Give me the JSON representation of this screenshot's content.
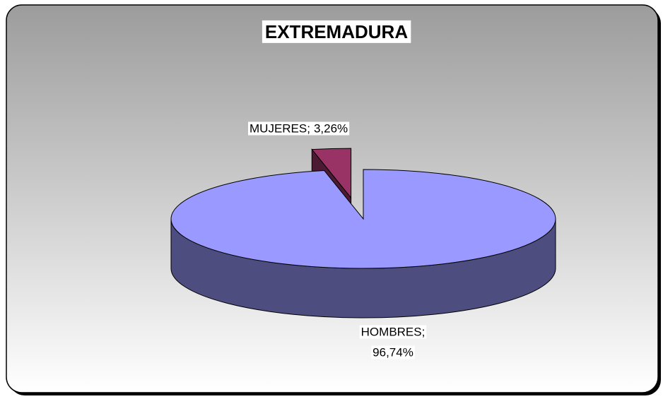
{
  "chart_data": {
    "type": "pie",
    "title": "EXTREMADURA",
    "categories": [
      "HOMBRES;",
      "MUJERES;"
    ],
    "values": [
      96.74,
      3.26
    ],
    "value_labels": [
      "96,74%",
      "3,26%"
    ],
    "colors": [
      "#9999ff",
      "#993366"
    ]
  }
}
